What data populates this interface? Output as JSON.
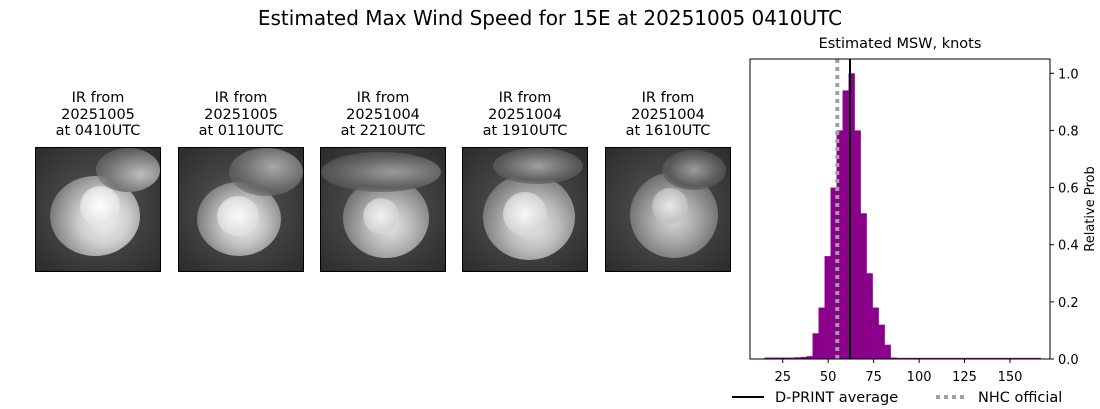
{
  "suptitle": "Estimated Max Wind Speed for 15E at 20251005 0410UTC",
  "ir_panels": [
    {
      "line1": "IR from",
      "line2": "20251005",
      "line3": "at 0410UTC"
    },
    {
      "line1": "IR from",
      "line2": "20251005",
      "line3": "at 0110UTC"
    },
    {
      "line1": "IR from",
      "line2": "20251004",
      "line3": "at 2210UTC"
    },
    {
      "line1": "IR from",
      "line2": "20251004",
      "line3": "at 1910UTC"
    },
    {
      "line1": "IR from",
      "line2": "20251004",
      "line3": "at 1610UTC"
    }
  ],
  "chart_data": {
    "type": "bar",
    "title": "Estimated MSW, knots",
    "ylabel": "Relative Prob",
    "xlim": [
      7,
      172
    ],
    "ylim": [
      0,
      1.05
    ],
    "x_ticks": [
      25,
      50,
      75,
      100,
      125,
      150
    ],
    "y_ticks": [
      0.0,
      0.2,
      0.4,
      0.6,
      0.8,
      1.0
    ],
    "y_tick_labels": [
      "0.0",
      "0.2",
      "0.4",
      "0.6",
      "0.8",
      "1.0"
    ],
    "bin_width": 3.3,
    "bins": [
      {
        "x": 15,
        "v": 0.005
      },
      {
        "x": 18.3,
        "v": 0.005
      },
      {
        "x": 21.6,
        "v": 0.005
      },
      {
        "x": 24.9,
        "v": 0.005
      },
      {
        "x": 28.2,
        "v": 0.005
      },
      {
        "x": 31.5,
        "v": 0.006
      },
      {
        "x": 34.8,
        "v": 0.007
      },
      {
        "x": 38.1,
        "v": 0.01
      },
      {
        "x": 41.4,
        "v": 0.09
      },
      {
        "x": 44.7,
        "v": 0.18
      },
      {
        "x": 48.0,
        "v": 0.36
      },
      {
        "x": 51.3,
        "v": 0.6
      },
      {
        "x": 54.6,
        "v": 0.8
      },
      {
        "x": 57.9,
        "v": 0.94
      },
      {
        "x": 61.2,
        "v": 1.0
      },
      {
        "x": 64.5,
        "v": 0.8
      },
      {
        "x": 67.8,
        "v": 0.51
      },
      {
        "x": 71.1,
        "v": 0.3
      },
      {
        "x": 74.4,
        "v": 0.18
      },
      {
        "x": 77.7,
        "v": 0.12
      },
      {
        "x": 81.0,
        "v": 0.05
      },
      {
        "x": 84.3,
        "v": 0.005
      },
      {
        "x": 87.6,
        "v": 0.004
      },
      {
        "x": 90.9,
        "v": 0.004
      },
      {
        "x": 94.2,
        "v": 0.004
      },
      {
        "x": 97.5,
        "v": 0.004
      },
      {
        "x": 100.8,
        "v": 0.004
      },
      {
        "x": 104.1,
        "v": 0.004
      },
      {
        "x": 107.4,
        "v": 0.004
      },
      {
        "x": 110.7,
        "v": 0.004
      },
      {
        "x": 114.0,
        "v": 0.004
      },
      {
        "x": 117.3,
        "v": 0.004
      },
      {
        "x": 120.6,
        "v": 0.004
      },
      {
        "x": 123.9,
        "v": 0.004
      },
      {
        "x": 127.2,
        "v": 0.004
      },
      {
        "x": 130.5,
        "v": 0.004
      },
      {
        "x": 133.8,
        "v": 0.004
      },
      {
        "x": 137.1,
        "v": 0.004
      },
      {
        "x": 140.4,
        "v": 0.004
      },
      {
        "x": 143.7,
        "v": 0.004
      },
      {
        "x": 147.0,
        "v": 0.004
      },
      {
        "x": 150.3,
        "v": 0.004
      },
      {
        "x": 153.6,
        "v": 0.004
      },
      {
        "x": 156.9,
        "v": 0.004
      },
      {
        "x": 160.2,
        "v": 0.004
      },
      {
        "x": 163.5,
        "v": 0.004
      }
    ],
    "dprint_average": 62,
    "nhc_official": 55,
    "legend": [
      {
        "label": "D-PRINT average",
        "style": "solid",
        "color": "#000000"
      },
      {
        "label": "NHC official",
        "style": "dotted",
        "color": "#a0a0a0"
      }
    ],
    "bar_color": "#8b008b"
  }
}
